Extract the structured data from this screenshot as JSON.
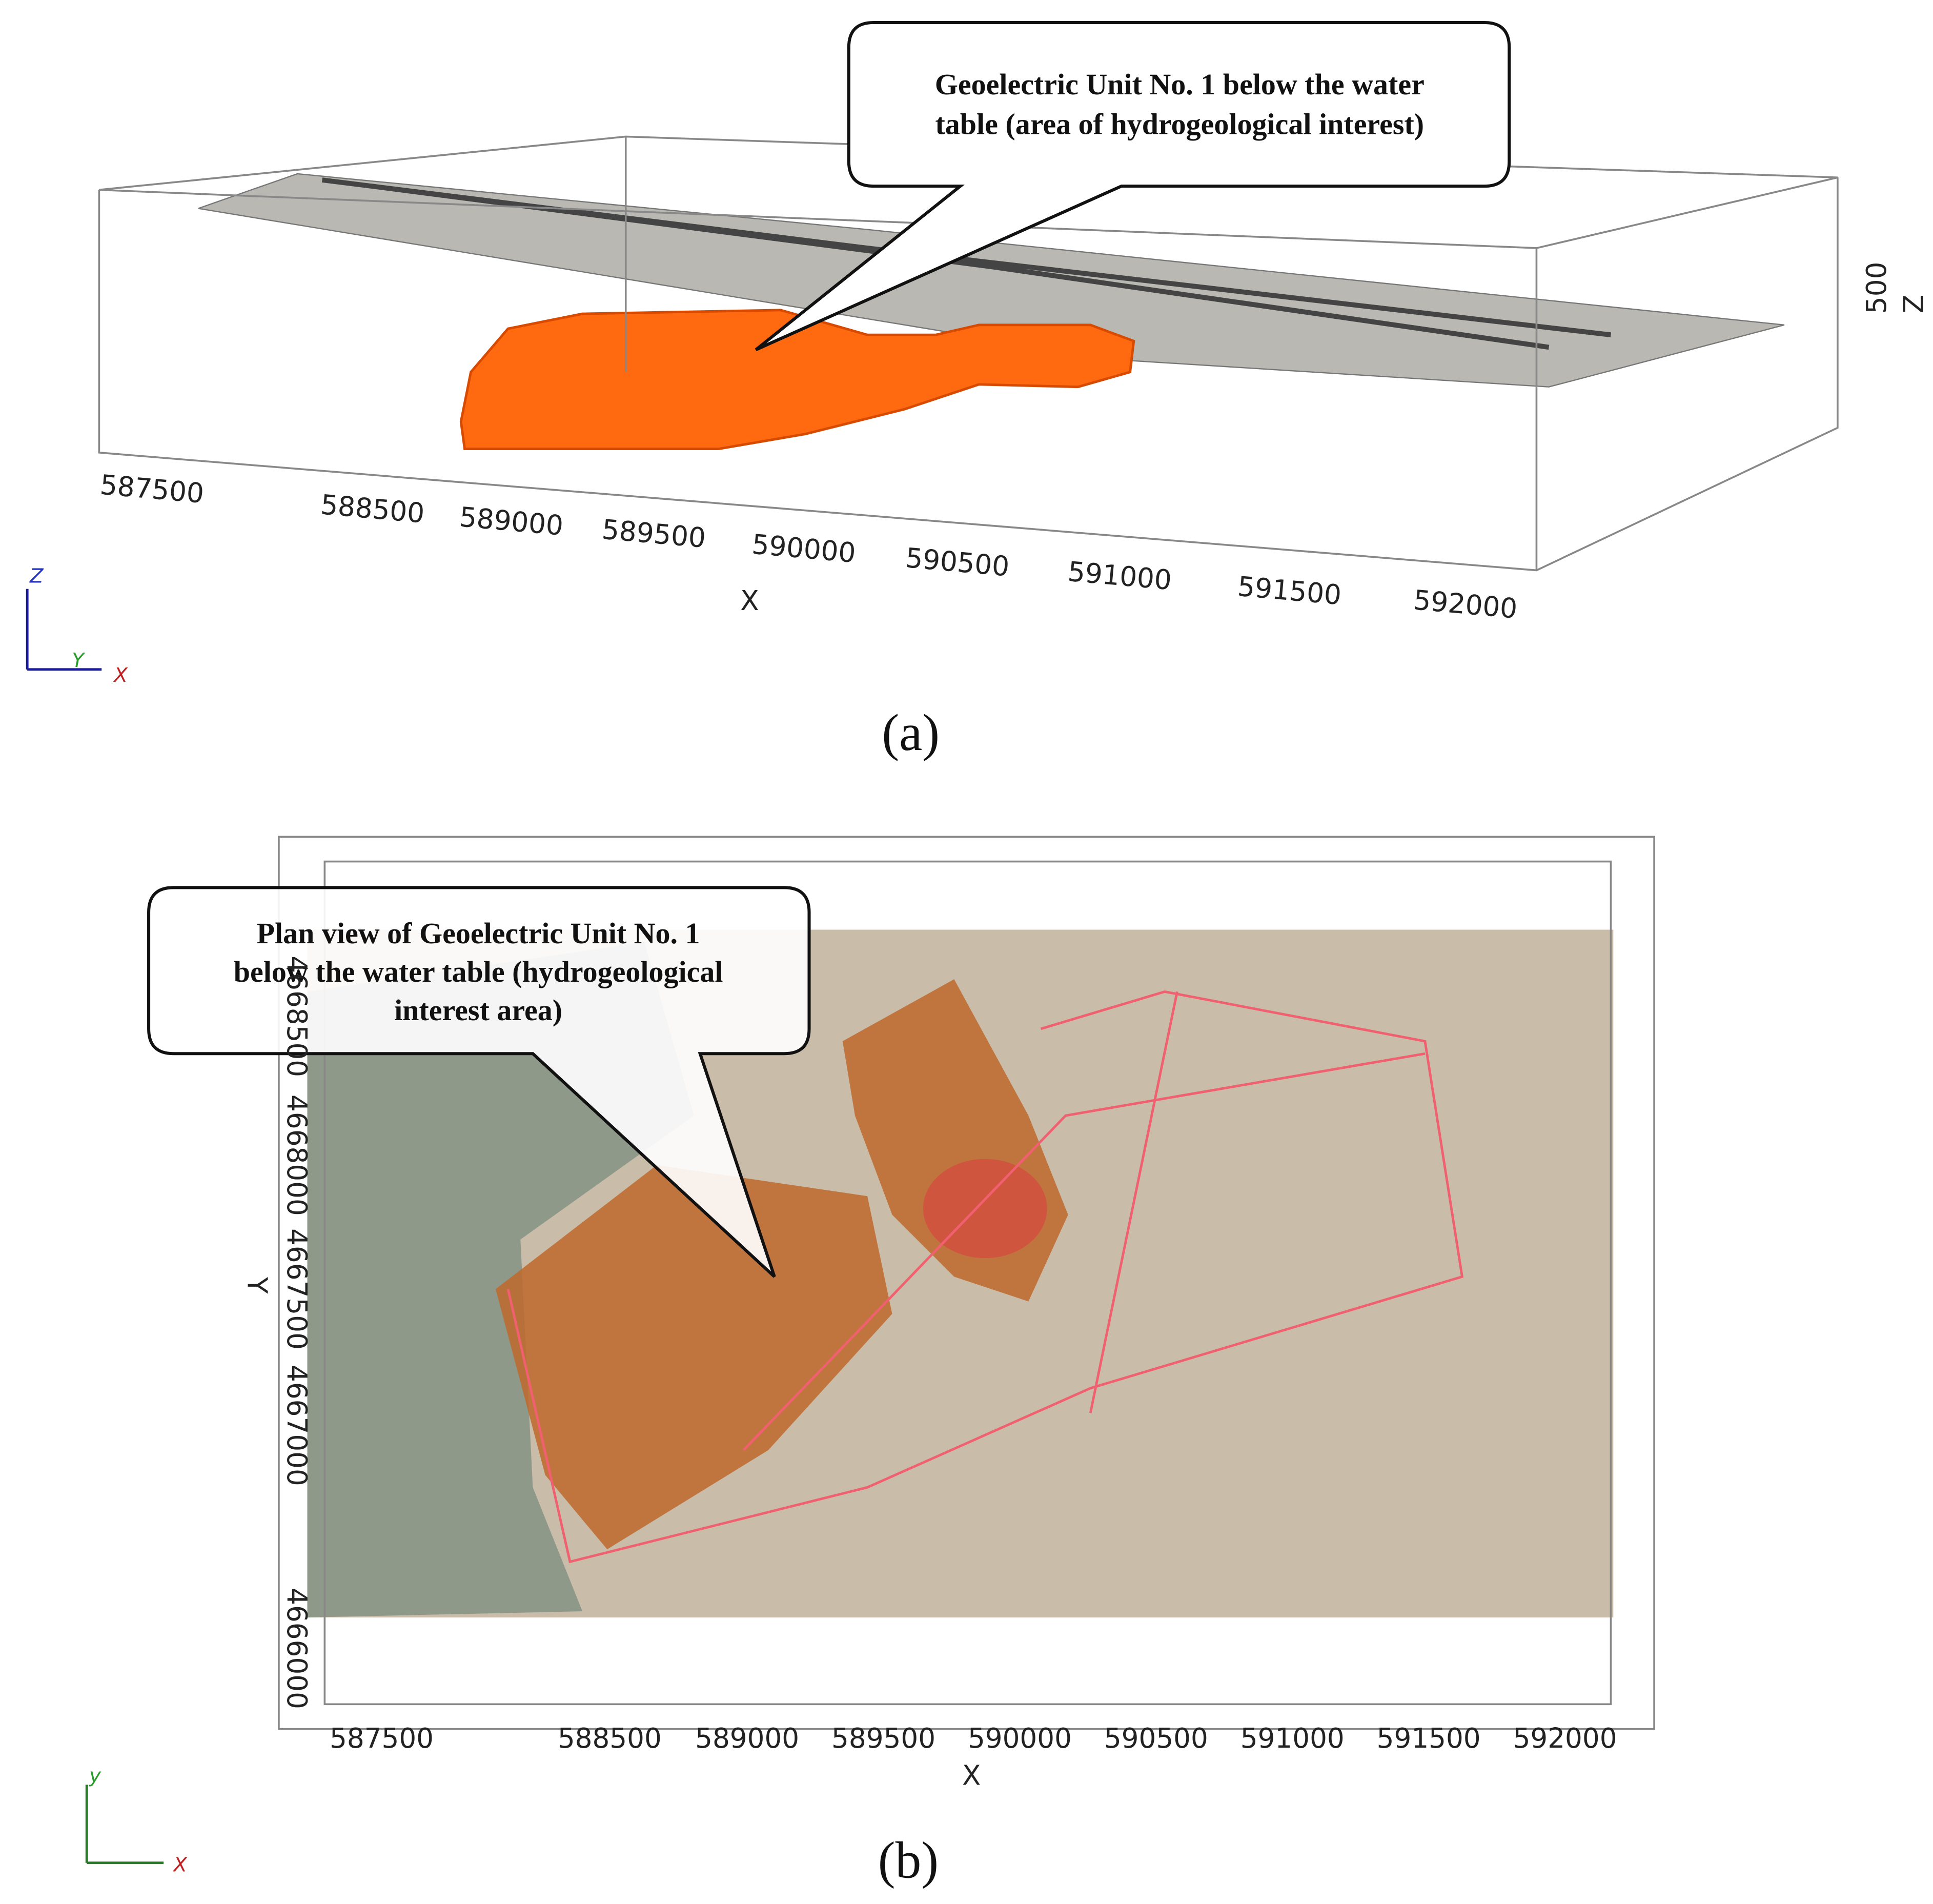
{
  "panel_a": {
    "callout": [
      "Geoelectric Unit No. 1 below the water",
      "table (area of hydrogeological interest)"
    ],
    "x_ticks": [
      "587500",
      "588500",
      "589000",
      "589500",
      "590000",
      "590500",
      "591000",
      "591500",
      "592000"
    ],
    "x_label": "X",
    "z_tick": "500",
    "z_label": "Z",
    "label": "(a)",
    "triad": [
      "Z",
      "Y",
      "X"
    ]
  },
  "panel_b": {
    "callout": [
      "Plan view of Geoelectric Unit No. 1",
      "below the water table (hydrogeological",
      "interest area)"
    ],
    "x_ticks": [
      "587500",
      "588500",
      "589000",
      "589500",
      "590000",
      "590500",
      "591000",
      "591500",
      "592000"
    ],
    "y_ticks": [
      "4668500",
      "4668000",
      "4667500",
      "4667000",
      "4666000"
    ],
    "x_label": "X",
    "y_label": "Y",
    "label": "(b)",
    "triad": [
      "y",
      "X"
    ]
  }
}
